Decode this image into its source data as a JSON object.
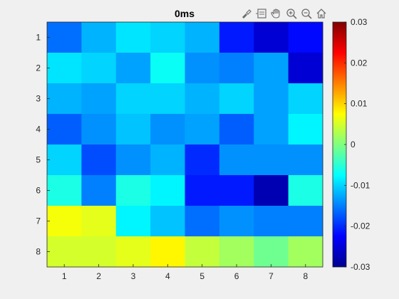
{
  "toolbar": {
    "icons": [
      "brush-icon",
      "data-tips-icon",
      "pan-hand-icon",
      "zoom-in-icon",
      "zoom-out-icon",
      "home-icon"
    ]
  },
  "chart_data": {
    "type": "heatmap",
    "title": "0ms",
    "xlabel": "",
    "ylabel": "",
    "x_ticks": [
      "1",
      "2",
      "3",
      "4",
      "5",
      "6",
      "7",
      "8"
    ],
    "y_ticks": [
      "1",
      "2",
      "3",
      "4",
      "5",
      "6",
      "7",
      "8"
    ],
    "colormap": "parula-like (jet)",
    "clim": [
      -0.03,
      0.03
    ],
    "colorbar_ticks": [
      "0.03",
      "0.02",
      "0.01",
      "0",
      "-0.01",
      "-0.02",
      "-0.03"
    ],
    "colorbar_tick_values": [
      0.03,
      0.02,
      0.01,
      0,
      -0.01,
      -0.02,
      -0.03
    ],
    "values": [
      [
        -0.016,
        -0.012,
        -0.009,
        -0.01,
        -0.012,
        -0.021,
        -0.025,
        -0.022
      ],
      [
        -0.009,
        -0.01,
        -0.013,
        -0.007,
        -0.014,
        -0.015,
        -0.013,
        -0.025
      ],
      [
        -0.012,
        -0.013,
        -0.01,
        -0.01,
        -0.012,
        -0.01,
        -0.013,
        -0.01
      ],
      [
        -0.017,
        -0.014,
        -0.011,
        -0.014,
        -0.013,
        -0.017,
        -0.013,
        -0.008
      ],
      [
        -0.01,
        -0.018,
        -0.014,
        -0.012,
        -0.02,
        -0.014,
        -0.014,
        -0.014
      ],
      [
        -0.006,
        -0.015,
        -0.006,
        -0.008,
        -0.021,
        -0.021,
        -0.027,
        -0.006
      ],
      [
        0.007,
        0.006,
        -0.008,
        -0.011,
        -0.016,
        -0.014,
        -0.015,
        -0.015
      ],
      [
        0.005,
        0.005,
        0.006,
        0.008,
        0.004,
        0.002,
        -0.001,
        0.002
      ]
    ]
  }
}
